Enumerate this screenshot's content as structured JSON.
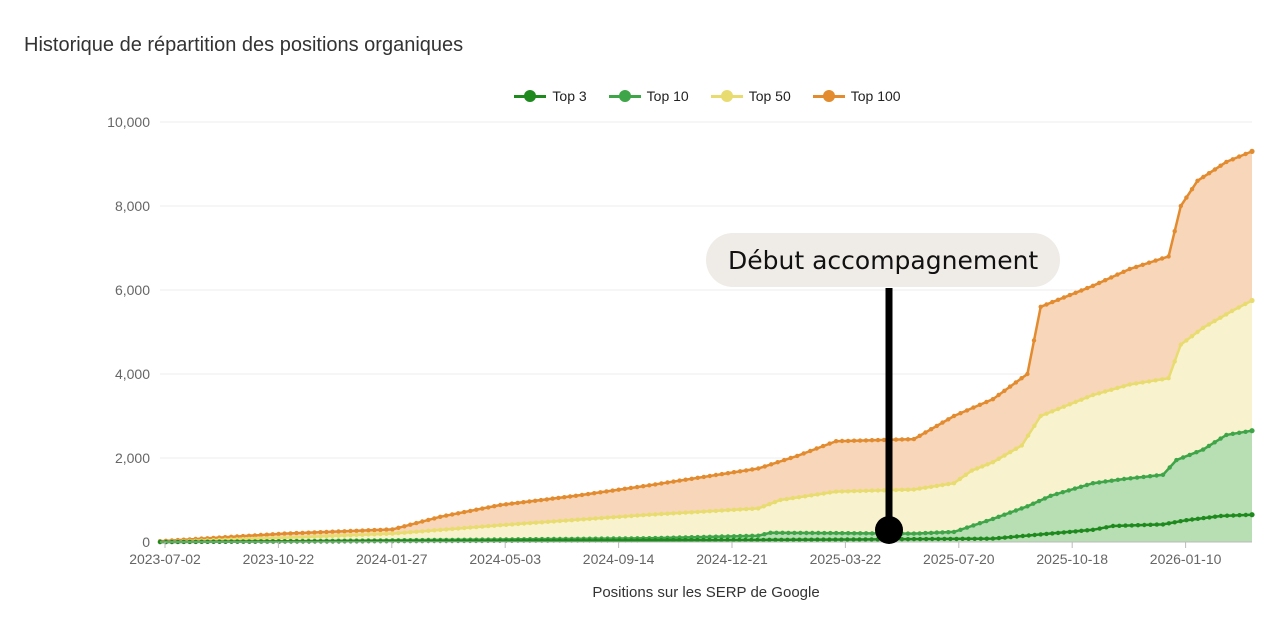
{
  "title": "Historique de répartition des positions organiques",
  "annotation": {
    "text": "Début accompagnement",
    "date": "2025-05-10"
  },
  "chart_data": {
    "type": "area",
    "title": "Historique de répartition des positions organiques",
    "xlabel": "Positions sur les SERP de Google",
    "ylabel": "",
    "ylim": [
      0,
      10000
    ],
    "yticks": [
      0,
      2000,
      4000,
      6000,
      8000,
      10000
    ],
    "ytick_labels": [
      "0",
      "2,000",
      "4,000",
      "6,000",
      "8,000",
      "10,000"
    ],
    "xrange": [
      "2023-07-02",
      "2026-03-10"
    ],
    "xtick_labels": [
      "2023-07-02",
      "2023-10-22",
      "2024-01-27",
      "2024-05-03",
      "2024-09-14",
      "2024-12-21",
      "2025-03-22",
      "2025-07-20",
      "2025-10-18",
      "2026-01-10"
    ],
    "legend_position": "top-center",
    "grid": true,
    "stacked": false,
    "series": [
      {
        "name": "Top 3",
        "color": "#1e8a1e",
        "fill": "#b8deb3",
        "points": [
          [
            "2023-07-02",
            0
          ],
          [
            "2024-01-27",
            20
          ],
          [
            "2024-09-14",
            40
          ],
          [
            "2025-03-22",
            60
          ],
          [
            "2025-07-20",
            80
          ],
          [
            "2025-09-01",
            180
          ],
          [
            "2025-10-18",
            290
          ],
          [
            "2025-11-05",
            380
          ],
          [
            "2025-12-20",
            420
          ],
          [
            "2026-01-10",
            520
          ],
          [
            "2026-02-10",
            620
          ],
          [
            "2026-03-10",
            650
          ]
        ]
      },
      {
        "name": "Top 10",
        "color": "#3ea548",
        "fill": "#b8deb3",
        "points": [
          [
            "2023-07-02",
            0
          ],
          [
            "2023-10-22",
            20
          ],
          [
            "2024-01-27",
            40
          ],
          [
            "2024-05-03",
            60
          ],
          [
            "2024-09-14",
            90
          ],
          [
            "2024-12-21",
            150
          ],
          [
            "2025-01-01",
            220
          ],
          [
            "2025-05-10",
            200
          ],
          [
            "2025-06-15",
            240
          ],
          [
            "2025-07-20",
            550
          ],
          [
            "2025-08-20",
            850
          ],
          [
            "2025-09-10",
            1100
          ],
          [
            "2025-10-18",
            1400
          ],
          [
            "2025-11-15",
            1500
          ],
          [
            "2025-12-20",
            1600
          ],
          [
            "2026-01-01",
            1950
          ],
          [
            "2026-01-25",
            2200
          ],
          [
            "2026-02-15",
            2550
          ],
          [
            "2026-03-10",
            2650
          ]
        ]
      },
      {
        "name": "Top 50",
        "color": "#e8dc70",
        "fill": "#f8f3ce",
        "points": [
          [
            "2023-07-02",
            0
          ],
          [
            "2023-10-22",
            100
          ],
          [
            "2024-01-27",
            200
          ],
          [
            "2024-05-03",
            400
          ],
          [
            "2024-09-14",
            650
          ],
          [
            "2024-12-21",
            800
          ],
          [
            "2025-01-10",
            1000
          ],
          [
            "2025-03-01",
            1200
          ],
          [
            "2025-05-10",
            1250
          ],
          [
            "2025-06-15",
            1400
          ],
          [
            "2025-07-01",
            1700
          ],
          [
            "2025-07-20",
            1900
          ],
          [
            "2025-08-15",
            2300
          ],
          [
            "2025-09-01",
            3000
          ],
          [
            "2025-10-18",
            3500
          ],
          [
            "2025-11-20",
            3750
          ],
          [
            "2025-12-25",
            3900
          ],
          [
            "2026-01-05",
            4700
          ],
          [
            "2026-01-25",
            5100
          ],
          [
            "2026-02-20",
            5500
          ],
          [
            "2026-03-10",
            5750
          ]
        ]
      },
      {
        "name": "Top 100",
        "color": "#e28b2f",
        "fill": "#f8d6b9",
        "points": [
          [
            "2023-07-02",
            20
          ],
          [
            "2023-10-22",
            200
          ],
          [
            "2024-01-27",
            300
          ],
          [
            "2024-03-10",
            600
          ],
          [
            "2024-05-03",
            880
          ],
          [
            "2024-07-10",
            1100
          ],
          [
            "2024-09-14",
            1350
          ],
          [
            "2024-12-21",
            1750
          ],
          [
            "2025-01-25",
            2050
          ],
          [
            "2025-03-01",
            2400
          ],
          [
            "2025-05-10",
            2450
          ],
          [
            "2025-06-15",
            3000
          ],
          [
            "2025-07-20",
            3400
          ],
          [
            "2025-08-20",
            4000
          ],
          [
            "2025-09-01",
            5600
          ],
          [
            "2025-10-18",
            6100
          ],
          [
            "2025-11-20",
            6500
          ],
          [
            "2025-12-25",
            6800
          ],
          [
            "2026-01-05",
            8000
          ],
          [
            "2026-01-20",
            8600
          ],
          [
            "2026-02-15",
            9050
          ],
          [
            "2026-03-10",
            9300
          ]
        ]
      }
    ]
  }
}
